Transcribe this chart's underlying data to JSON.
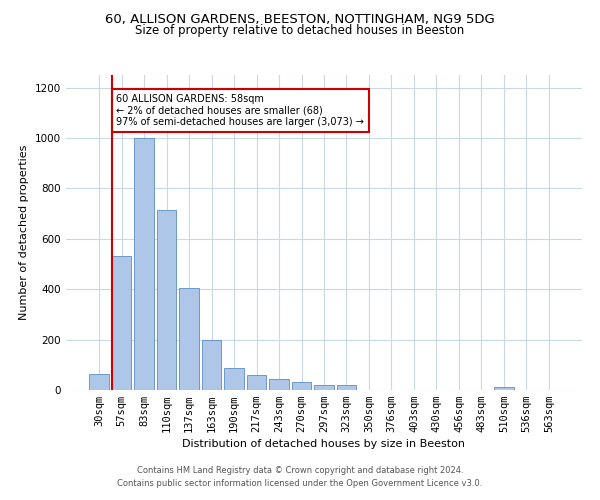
{
  "title": "60, ALLISON GARDENS, BEESTON, NOTTINGHAM, NG9 5DG",
  "subtitle": "Size of property relative to detached houses in Beeston",
  "xlabel": "Distribution of detached houses by size in Beeston",
  "ylabel": "Number of detached properties",
  "bar_labels": [
    "30sqm",
    "57sqm",
    "83sqm",
    "110sqm",
    "137sqm",
    "163sqm",
    "190sqm",
    "217sqm",
    "243sqm",
    "270sqm",
    "297sqm",
    "323sqm",
    "350sqm",
    "376sqm",
    "403sqm",
    "430sqm",
    "456sqm",
    "483sqm",
    "510sqm",
    "536sqm",
    "563sqm"
  ],
  "bar_values": [
    65,
    530,
    1000,
    715,
    405,
    198,
    88,
    60,
    42,
    32,
    18,
    18,
    0,
    0,
    0,
    0,
    0,
    0,
    10,
    0,
    0
  ],
  "bar_color": "#aec6e8",
  "bar_edge_color": "#5a8fc2",
  "annotation_line1": "60 ALLISON GARDENS: 58sqm",
  "annotation_line2": "← 2% of detached houses are smaller (68)",
  "annotation_line3": "97% of semi-detached houses are larger (3,073) →",
  "annotation_box_color": "#cc0000",
  "red_line_color": "#cc0000",
  "ylim": [
    0,
    1250
  ],
  "yticks": [
    0,
    200,
    400,
    600,
    800,
    1000,
    1200
  ],
  "footer_line1": "Contains HM Land Registry data © Crown copyright and database right 2024.",
  "footer_line2": "Contains public sector information licensed under the Open Government Licence v3.0.",
  "background_color": "#ffffff",
  "grid_color": "#c8d8e8",
  "title_fontsize": 9.5,
  "subtitle_fontsize": 8.5,
  "ylabel_fontsize": 8,
  "xlabel_fontsize": 8,
  "tick_fontsize": 7.5,
  "annotation_fontsize": 7,
  "footer_fontsize": 6
}
